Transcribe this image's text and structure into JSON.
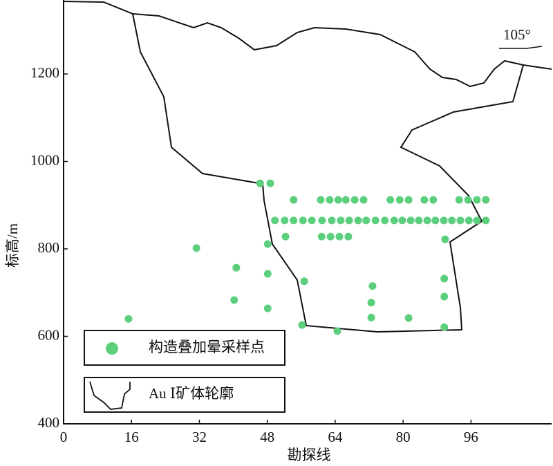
{
  "chart_data": {
    "type": "scatter",
    "x_label": "勘探线",
    "y_label": "标高/m",
    "annotation": "105°",
    "xlim": [
      0,
      115
    ],
    "ylim": [
      400,
      1366
    ],
    "xticks": [
      0,
      16,
      32,
      48,
      64,
      80,
      96
    ],
    "yticks": [
      400,
      600,
      800,
      1000,
      1200
    ],
    "outline_legend": "Au Ⅰ矿体轮廓",
    "series": [
      {
        "name": "构造叠加晕采样点",
        "color": "#5ccf7d",
        "x": [
          15.3,
          31.3,
          40.7,
          40.2,
          46.3,
          48.7,
          48.1,
          48.1,
          48.1,
          54.2,
          52.3,
          56.7,
          56.2,
          64.5,
          49.8,
          52.1,
          54.2,
          56.4,
          58.5,
          60.9,
          63.2,
          65.3,
          67.3,
          69.4,
          71.3,
          73.5,
          75.7,
          77.9,
          79.8,
          81.8,
          83.7,
          85.7,
          87.6,
          89.6,
          91.5,
          93.5,
          95.5,
          97.4,
          99.5,
          60.6,
          62.7,
          64.7,
          66.5,
          68.6,
          70.7,
          77.0,
          79.2,
          81.3,
          85.0,
          87.1,
          93.2,
          95.3,
          97.4,
          99.5,
          60.8,
          62.9,
          65.0,
          67.1,
          89.9,
          89.7,
          89.7,
          89.7,
          72.8,
          72.5,
          72.5,
          81.3
        ],
        "y": [
          640,
          802,
          757,
          683,
          950,
          950,
          811,
          743,
          664,
          912,
          828,
          726,
          626,
          612,
          865,
          865,
          865,
          865,
          865,
          865,
          865,
          865,
          865,
          865,
          865,
          865,
          865,
          865,
          865,
          865,
          865,
          865,
          865,
          865,
          865,
          865,
          865,
          865,
          865,
          912,
          912,
          912,
          912,
          912,
          912,
          912,
          912,
          912,
          912,
          912,
          912,
          912,
          912,
          912,
          828,
          828,
          828,
          828,
          822,
          732,
          691,
          621,
          715,
          677,
          643,
          642
        ]
      }
    ]
  }
}
